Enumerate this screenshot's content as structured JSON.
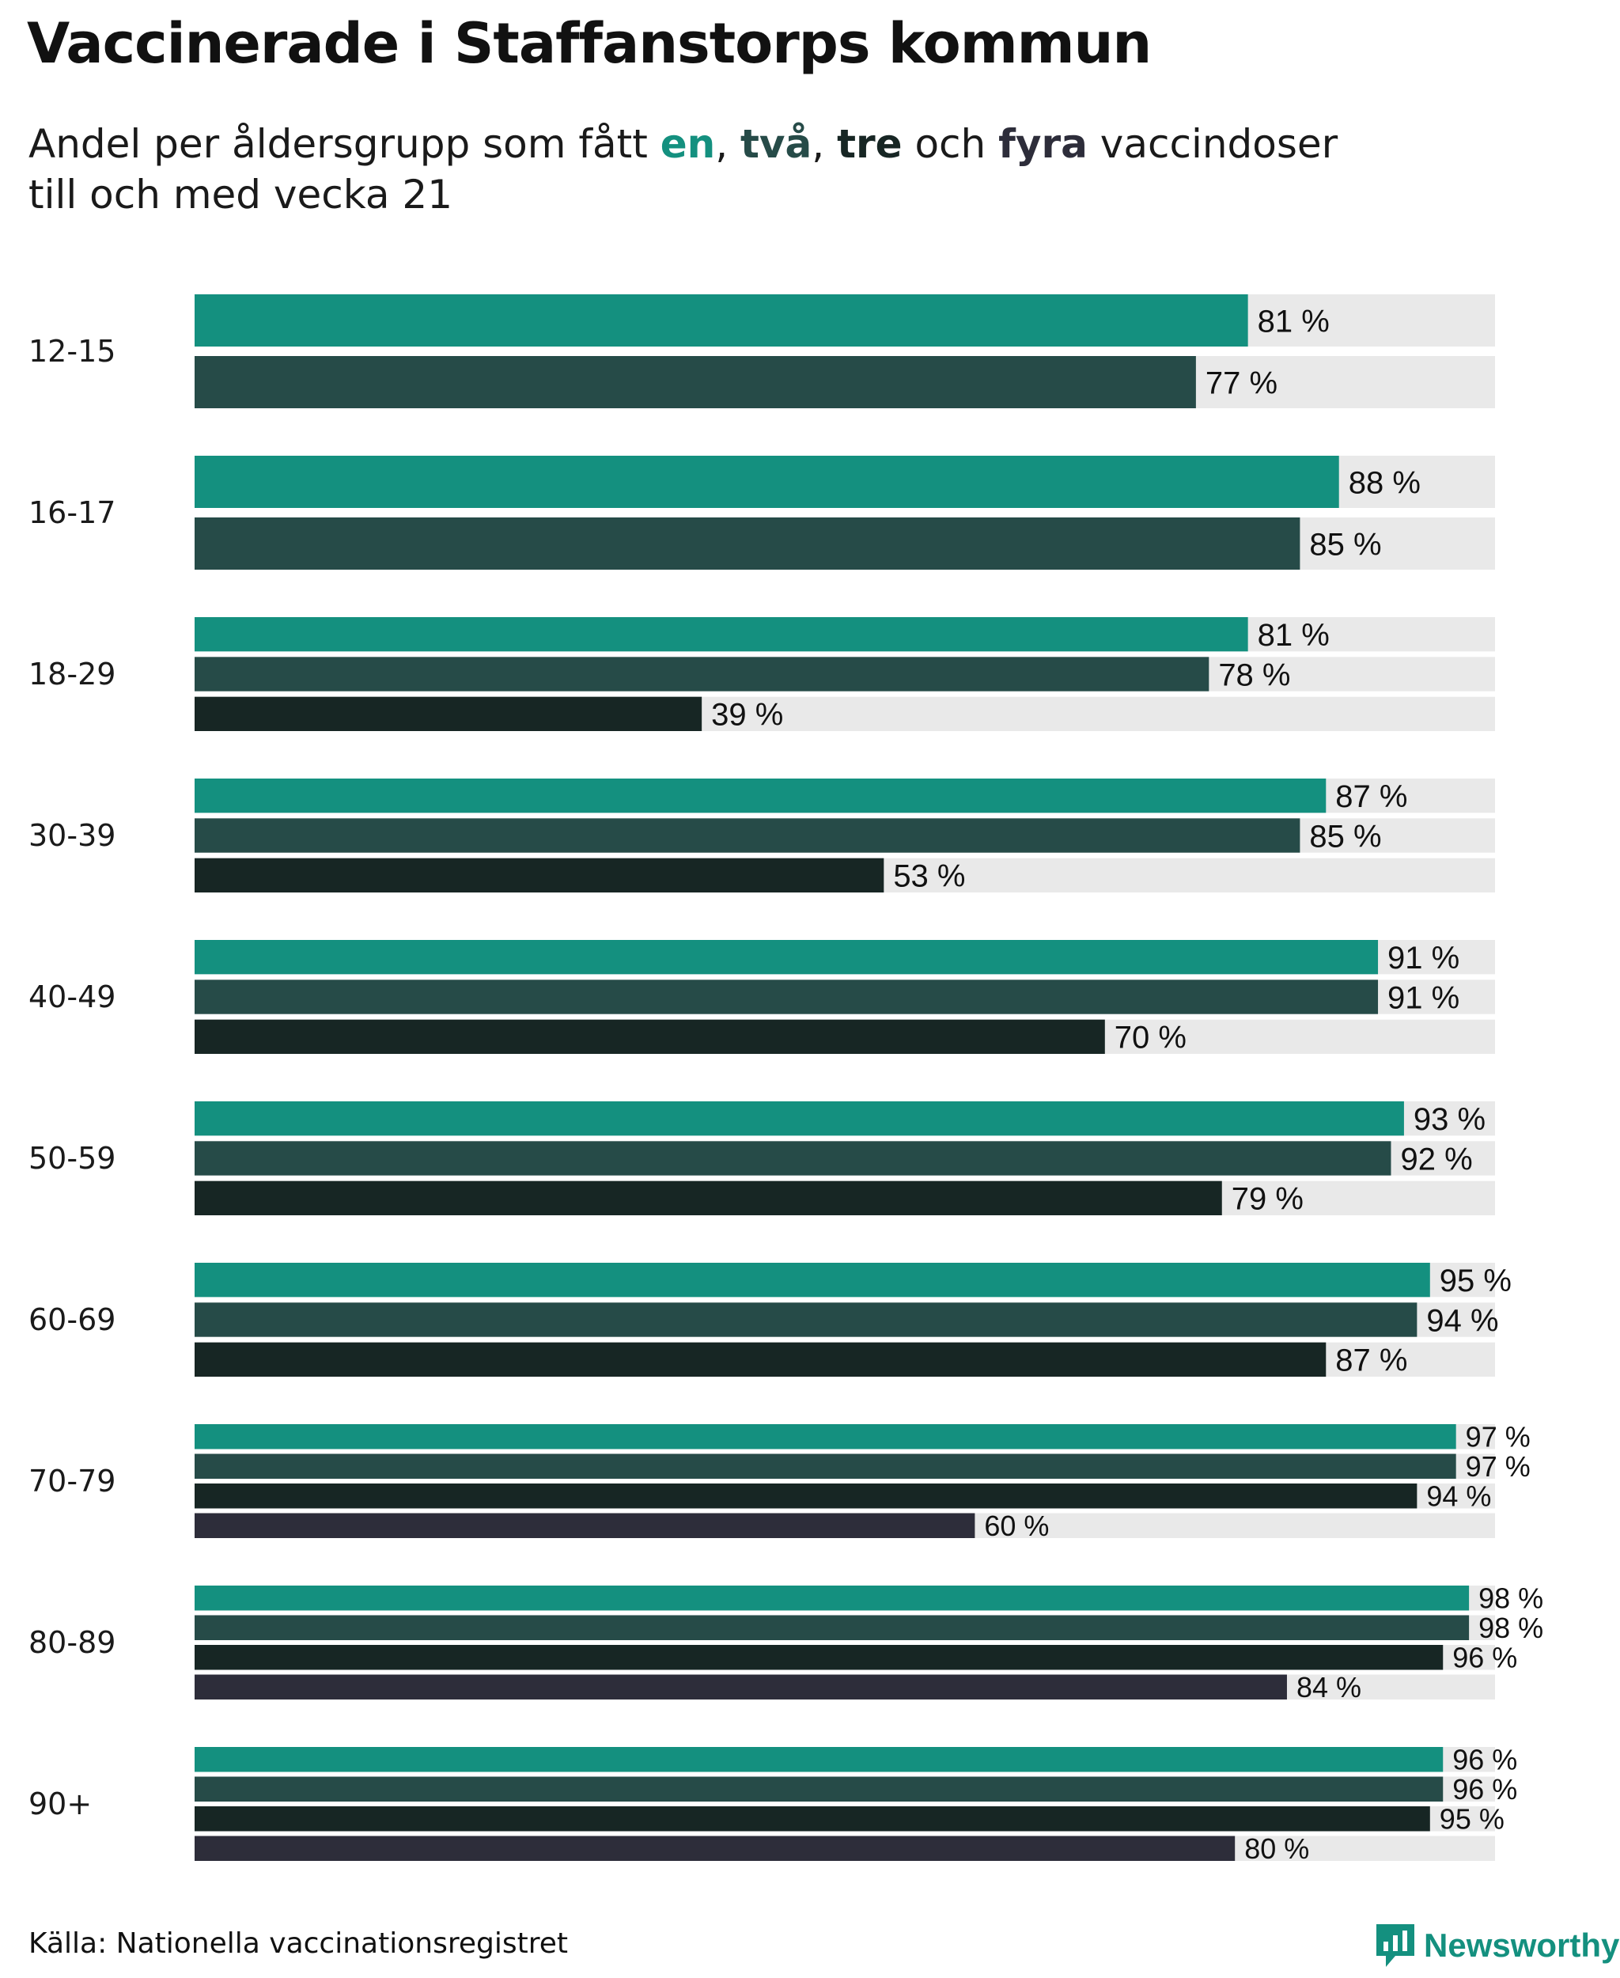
{
  "title": "Vaccinerade i Staffanstorps kommun",
  "subtitle": {
    "part1": "Andel per åldersgrupp som fått ",
    "kw_en": "en",
    "sep1": ", ",
    "kw_tva": "två",
    "sep2": ", ",
    "kw_tre": "tre",
    "sep3": " och ",
    "kw_fyra": "fyra",
    "part2": " vaccindoser",
    "line2": "till och med vecka 21"
  },
  "source": "Källa: Nationella vaccinationsregistret",
  "logo": {
    "text": "Newsworthy",
    "icon": "newsworthy-logo-icon"
  },
  "colors": {
    "dose1": "#14907f",
    "dose2": "#264b48",
    "dose3": "#172624",
    "dose4": "#2d2d3a",
    "track": "#e9e9e9",
    "brand": "#14907f"
  },
  "chart_data": {
    "type": "bar",
    "orientation": "horizontal",
    "value_suffix": " %",
    "xlim": [
      0,
      100
    ],
    "categories": [
      "12-15",
      "16-17",
      "18-29",
      "30-39",
      "40-49",
      "50-59",
      "60-69",
      "70-79",
      "80-89",
      "90+"
    ],
    "series": [
      {
        "name": "en",
        "values": [
          81,
          88,
          81,
          87,
          91,
          93,
          95,
          97,
          98,
          96
        ]
      },
      {
        "name": "två",
        "values": [
          77,
          85,
          78,
          85,
          91,
          92,
          94,
          97,
          98,
          96
        ]
      },
      {
        "name": "tre",
        "values": [
          null,
          null,
          39,
          53,
          70,
          79,
          87,
          94,
          96,
          95
        ]
      },
      {
        "name": "fyra",
        "values": [
          null,
          null,
          null,
          null,
          null,
          null,
          null,
          60,
          84,
          80
        ]
      }
    ]
  }
}
